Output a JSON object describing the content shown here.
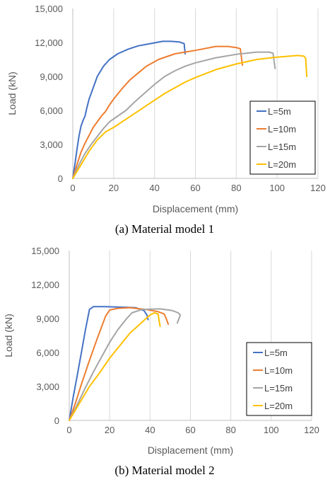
{
  "chart_data": [
    {
      "type": "line",
      "caption": "(a) Material model 1",
      "xlabel": "Displacement (mm)",
      "ylabel": "Load (kN)",
      "xlim": [
        0,
        120
      ],
      "ylim": [
        0,
        15000
      ],
      "x_ticks": [
        "0",
        "20",
        "40",
        "60",
        "80",
        "100",
        "120"
      ],
      "y_ticks": [
        "0",
        "3,000",
        "6,000",
        "9,000",
        "12,000",
        "15,000"
      ],
      "grid": "vertical",
      "legend_position": "bottom-right",
      "series": [
        {
          "name": "L=5m",
          "color": "#4472C4",
          "points": [
            [
              0,
              0
            ],
            [
              1,
              1200
            ],
            [
              2,
              2500
            ],
            [
              3,
              3700
            ],
            [
              4,
              4600
            ],
            [
              5,
              5100
            ],
            [
              6,
              5500
            ],
            [
              7,
              6300
            ],
            [
              8,
              7000
            ],
            [
              10,
              8000
            ],
            [
              12,
              9000
            ],
            [
              15,
              9900
            ],
            [
              18,
              10500
            ],
            [
              22,
              11000
            ],
            [
              27,
              11400
            ],
            [
              32,
              11700
            ],
            [
              38,
              11900
            ],
            [
              44,
              12100
            ],
            [
              48,
              12100
            ],
            [
              52,
              12050
            ],
            [
              54.5,
              11900
            ],
            [
              55,
              11000
            ]
          ]
        },
        {
          "name": "L=10m",
          "color": "#ED7D31",
          "points": [
            [
              0,
              0
            ],
            [
              2,
              1200
            ],
            [
              4,
              2300
            ],
            [
              6,
              3100
            ],
            [
              8,
              3800
            ],
            [
              10,
              4500
            ],
            [
              12,
              5000
            ],
            [
              14,
              5500
            ],
            [
              16,
              5900
            ],
            [
              18,
              6500
            ],
            [
              20,
              7000
            ],
            [
              24,
              7900
            ],
            [
              28,
              8700
            ],
            [
              32,
              9300
            ],
            [
              36,
              9900
            ],
            [
              42,
              10500
            ],
            [
              50,
              11000
            ],
            [
              60,
              11300
            ],
            [
              70,
              11650
            ],
            [
              76,
              11650
            ],
            [
              80,
              11550
            ],
            [
              82,
              11450
            ],
            [
              83,
              10000
            ]
          ]
        },
        {
          "name": "L=15m",
          "color": "#A5A5A5",
          "points": [
            [
              0,
              0
            ],
            [
              3,
              1200
            ],
            [
              6,
              2200
            ],
            [
              9,
              3000
            ],
            [
              12,
              3700
            ],
            [
              15,
              4400
            ],
            [
              18,
              5000
            ],
            [
              22,
              5500
            ],
            [
              26,
              6000
            ],
            [
              30,
              6700
            ],
            [
              35,
              7500
            ],
            [
              40,
              8300
            ],
            [
              45,
              9000
            ],
            [
              50,
              9500
            ],
            [
              55,
              9900
            ],
            [
              60,
              10200
            ],
            [
              70,
              10650
            ],
            [
              80,
              10950
            ],
            [
              90,
              11150
            ],
            [
              96,
              11150
            ],
            [
              98,
              11050
            ],
            [
              99,
              9700
            ]
          ]
        },
        {
          "name": "L=20m",
          "color": "#FFC000",
          "points": [
            [
              0,
              0
            ],
            [
              4,
              1200
            ],
            [
              8,
              2400
            ],
            [
              12,
              3400
            ],
            [
              16,
              4100
            ],
            [
              20,
              4500
            ],
            [
              25,
              5100
            ],
            [
              30,
              5700
            ],
            [
              35,
              6300
            ],
            [
              40,
              6900
            ],
            [
              45,
              7500
            ],
            [
              50,
              8000
            ],
            [
              55,
              8500
            ],
            [
              60,
              8900
            ],
            [
              70,
              9600
            ],
            [
              80,
              10100
            ],
            [
              90,
              10500
            ],
            [
              100,
              10700
            ],
            [
              110,
              10850
            ],
            [
              113,
              10800
            ],
            [
              114,
              10600
            ],
            [
              114.5,
              9000
            ]
          ]
        }
      ]
    },
    {
      "type": "line",
      "caption": "(b) Material model 2",
      "xlabel": "Displacement (mm)",
      "ylabel": "Load (kN)",
      "xlim": [
        0,
        120
      ],
      "ylim": [
        0,
        15000
      ],
      "x_ticks": [
        "0",
        "20",
        "40",
        "60",
        "80",
        "100",
        "120"
      ],
      "y_ticks": [
        "0",
        "3,000",
        "6,000",
        "9,000",
        "12,000",
        "15,000"
      ],
      "grid": "vertical",
      "legend_position": "bottom-right",
      "series": [
        {
          "name": "L=5m",
          "color": "#4472C4",
          "points": [
            [
              0,
              0
            ],
            [
              2,
              2100
            ],
            [
              4,
              4000
            ],
            [
              6,
              6000
            ],
            [
              8,
              8000
            ],
            [
              10,
              9800
            ],
            [
              12,
              10050
            ],
            [
              18,
              10050
            ],
            [
              26,
              10000
            ],
            [
              33,
              9950
            ],
            [
              37,
              9700
            ],
            [
              38.5,
              9300
            ],
            [
              39,
              8900
            ]
          ]
        },
        {
          "name": "L=10m",
          "color": "#ED7D31",
          "points": [
            [
              0,
              0
            ],
            [
              3,
              1500
            ],
            [
              6,
              3200
            ],
            [
              10,
              5300
            ],
            [
              14,
              7300
            ],
            [
              18,
              9200
            ],
            [
              20,
              9750
            ],
            [
              24,
              9900
            ],
            [
              30,
              9950
            ],
            [
              38,
              9800
            ],
            [
              44,
              9600
            ],
            [
              47,
              9400
            ],
            [
              48,
              9000
            ],
            [
              49,
              8500
            ]
          ]
        },
        {
          "name": "L=15m",
          "color": "#A5A5A5",
          "points": [
            [
              0,
              0
            ],
            [
              4,
              1400
            ],
            [
              8,
              2900
            ],
            [
              12,
              4300
            ],
            [
              16,
              5600
            ],
            [
              20,
              6900
            ],
            [
              24,
              8000
            ],
            [
              28,
              8900
            ],
            [
              31,
              9500
            ],
            [
              36,
              9800
            ],
            [
              45,
              9850
            ],
            [
              51,
              9700
            ],
            [
              54,
              9500
            ],
            [
              55,
              9300
            ],
            [
              53.5,
              8600
            ]
          ]
        },
        {
          "name": "L=20m",
          "color": "#FFC000",
          "points": [
            [
              0,
              0
            ],
            [
              5,
              1500
            ],
            [
              10,
              3000
            ],
            [
              15,
              4200
            ],
            [
              20,
              5500
            ],
            [
              25,
              6600
            ],
            [
              30,
              7700
            ],
            [
              35,
              8500
            ],
            [
              38,
              9000
            ],
            [
              40,
              9300
            ],
            [
              42,
              9500
            ],
            [
              44,
              9400
            ],
            [
              44.5,
              8800
            ],
            [
              45,
              8300
            ]
          ]
        }
      ]
    }
  ]
}
